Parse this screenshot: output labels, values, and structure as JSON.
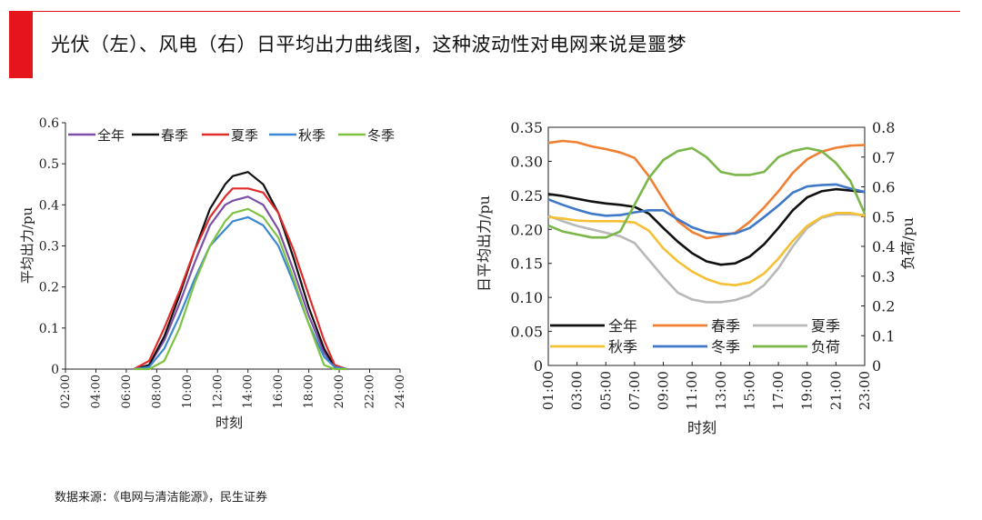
{
  "header": {
    "title": "光伏（左）、风电（右）日平均出力曲线图，这种波动性对电网来说是噩梦",
    "accent_color": "#e5161b"
  },
  "footer": {
    "source": "数据来源：《电网与清洁能源》，民生证券"
  },
  "chart_data": [
    {
      "type": "line",
      "ylabel": "平均出力/pu",
      "xlabel": "时刻",
      "ylim": [
        0,
        0.6
      ],
      "xlim": [
        2,
        24
      ],
      "y_ticks": [
        0,
        0.1,
        0.2,
        0.3,
        0.4,
        0.5,
        0.6
      ],
      "y_tick_labels": [
        "0",
        "0.1",
        "0.2",
        "0.3",
        "0.4",
        "0.5",
        "0.6"
      ],
      "x_ticks": [
        2,
        4,
        6,
        8,
        10,
        12,
        14,
        16,
        18,
        20,
        22,
        24
      ],
      "x_tick_labels": [
        "02:00",
        "04:00",
        "06:00",
        "08:00",
        "10:00",
        "12:00",
        "14:00",
        "16:00",
        "18:00",
        "20:00",
        "22:00",
        "24:00"
      ],
      "legend": "top",
      "x": [
        6.5,
        7.5,
        8.5,
        9.5,
        10.5,
        11.5,
        12.5,
        13,
        14,
        15,
        16,
        17,
        18,
        19,
        19.7,
        20.5
      ],
      "series": [
        {
          "name": "全年",
          "color": "#7b4fa8",
          "values": [
            0,
            0.01,
            0.07,
            0.16,
            0.26,
            0.35,
            0.4,
            0.41,
            0.42,
            0.4,
            0.34,
            0.24,
            0.13,
            0.04,
            0.005,
            0
          ]
        },
        {
          "name": "春季",
          "color": "#111111",
          "values": [
            0,
            0.01,
            0.08,
            0.18,
            0.29,
            0.39,
            0.45,
            0.47,
            0.48,
            0.45,
            0.38,
            0.27,
            0.15,
            0.05,
            0.005,
            0
          ]
        },
        {
          "name": "夏季",
          "color": "#e02b2b",
          "values": [
            0,
            0.02,
            0.1,
            0.19,
            0.29,
            0.37,
            0.42,
            0.44,
            0.44,
            0.43,
            0.38,
            0.29,
            0.18,
            0.07,
            0.01,
            0
          ]
        },
        {
          "name": "秋季",
          "color": "#3b87d1",
          "values": [
            0,
            0.005,
            0.05,
            0.13,
            0.22,
            0.3,
            0.34,
            0.36,
            0.37,
            0.35,
            0.3,
            0.21,
            0.11,
            0.03,
            0.005,
            0
          ]
        },
        {
          "name": "冬季",
          "color": "#7fc241",
          "values": [
            0,
            0,
            0.02,
            0.1,
            0.21,
            0.3,
            0.36,
            0.38,
            0.39,
            0.37,
            0.32,
            0.22,
            0.11,
            0.01,
            0,
            0
          ]
        }
      ]
    },
    {
      "type": "line",
      "ylabel": "日平均出力/pu",
      "y2label": "负荷/pu",
      "xlabel": "时刻",
      "ylim": [
        0,
        0.35
      ],
      "y2lim": [
        0,
        0.8
      ],
      "xlim": [
        1,
        23
      ],
      "y_ticks": [
        0,
        0.05,
        0.1,
        0.15,
        0.2,
        0.25,
        0.3,
        0.35
      ],
      "y_tick_labels": [
        "0",
        "0.05",
        "0.10",
        "0.15",
        "0.20",
        "0.25",
        "0.30",
        "0.35"
      ],
      "y2_ticks": [
        0,
        0.1,
        0.2,
        0.3,
        0.4,
        0.5,
        0.6,
        0.7,
        0.8
      ],
      "y2_tick_labels": [
        "0",
        "0.1",
        "0.2",
        "0.3",
        "0.4",
        "0.5",
        "0.6",
        "0.7",
        "0.8"
      ],
      "x_ticks": [
        1,
        3,
        5,
        7,
        9,
        11,
        13,
        15,
        17,
        19,
        21,
        23
      ],
      "x_tick_labels": [
        "01:00",
        "03:00",
        "05:00",
        "07:00",
        "09:00",
        "11:00",
        "13:00",
        "15:00",
        "17:00",
        "19:00",
        "21:00",
        "23:00"
      ],
      "legend": "bottom-center",
      "x": [
        1,
        2,
        3,
        4,
        5,
        6,
        7,
        8,
        9,
        10,
        11,
        12,
        13,
        14,
        15,
        16,
        17,
        18,
        19,
        20,
        21,
        22,
        23
      ],
      "series": [
        {
          "name": "全年",
          "color": "#111111",
          "axis": "left",
          "values": [
            0.252,
            0.249,
            0.245,
            0.241,
            0.238,
            0.236,
            0.233,
            0.223,
            0.202,
            0.182,
            0.165,
            0.153,
            0.148,
            0.15,
            0.16,
            0.178,
            0.202,
            0.228,
            0.247,
            0.256,
            0.259,
            0.257,
            0.255
          ]
        },
        {
          "name": "春季",
          "color": "#f07f32",
          "axis": "left",
          "values": [
            0.327,
            0.33,
            0.328,
            0.322,
            0.318,
            0.313,
            0.305,
            0.278,
            0.244,
            0.212,
            0.196,
            0.187,
            0.19,
            0.195,
            0.211,
            0.232,
            0.256,
            0.283,
            0.303,
            0.314,
            0.32,
            0.323,
            0.324
          ]
        },
        {
          "name": "夏季",
          "color": "#b8b8b8",
          "axis": "left",
          "values": [
            0.22,
            0.212,
            0.205,
            0.2,
            0.195,
            0.19,
            0.18,
            0.155,
            0.13,
            0.107,
            0.097,
            0.093,
            0.093,
            0.096,
            0.103,
            0.118,
            0.143,
            0.175,
            0.202,
            0.217,
            0.222,
            0.222,
            0.221
          ]
        },
        {
          "name": "秋季",
          "color": "#f5c033",
          "axis": "left",
          "values": [
            0.218,
            0.216,
            0.213,
            0.212,
            0.212,
            0.212,
            0.21,
            0.198,
            0.172,
            0.153,
            0.138,
            0.127,
            0.12,
            0.118,
            0.122,
            0.135,
            0.157,
            0.183,
            0.205,
            0.218,
            0.224,
            0.224,
            0.22
          ]
        },
        {
          "name": "冬季",
          "color": "#3f78c8",
          "axis": "left",
          "values": [
            0.244,
            0.236,
            0.229,
            0.223,
            0.22,
            0.221,
            0.225,
            0.228,
            0.228,
            0.215,
            0.203,
            0.196,
            0.193,
            0.194,
            0.202,
            0.218,
            0.235,
            0.254,
            0.263,
            0.265,
            0.266,
            0.26,
            0.255
          ]
        },
        {
          "name": "负荷",
          "color": "#7ab648",
          "axis": "right",
          "values": [
            0.47,
            0.45,
            0.44,
            0.43,
            0.43,
            0.45,
            0.54,
            0.63,
            0.69,
            0.72,
            0.73,
            0.7,
            0.65,
            0.64,
            0.64,
            0.65,
            0.7,
            0.72,
            0.73,
            0.72,
            0.68,
            0.62,
            0.51
          ]
        }
      ]
    }
  ]
}
